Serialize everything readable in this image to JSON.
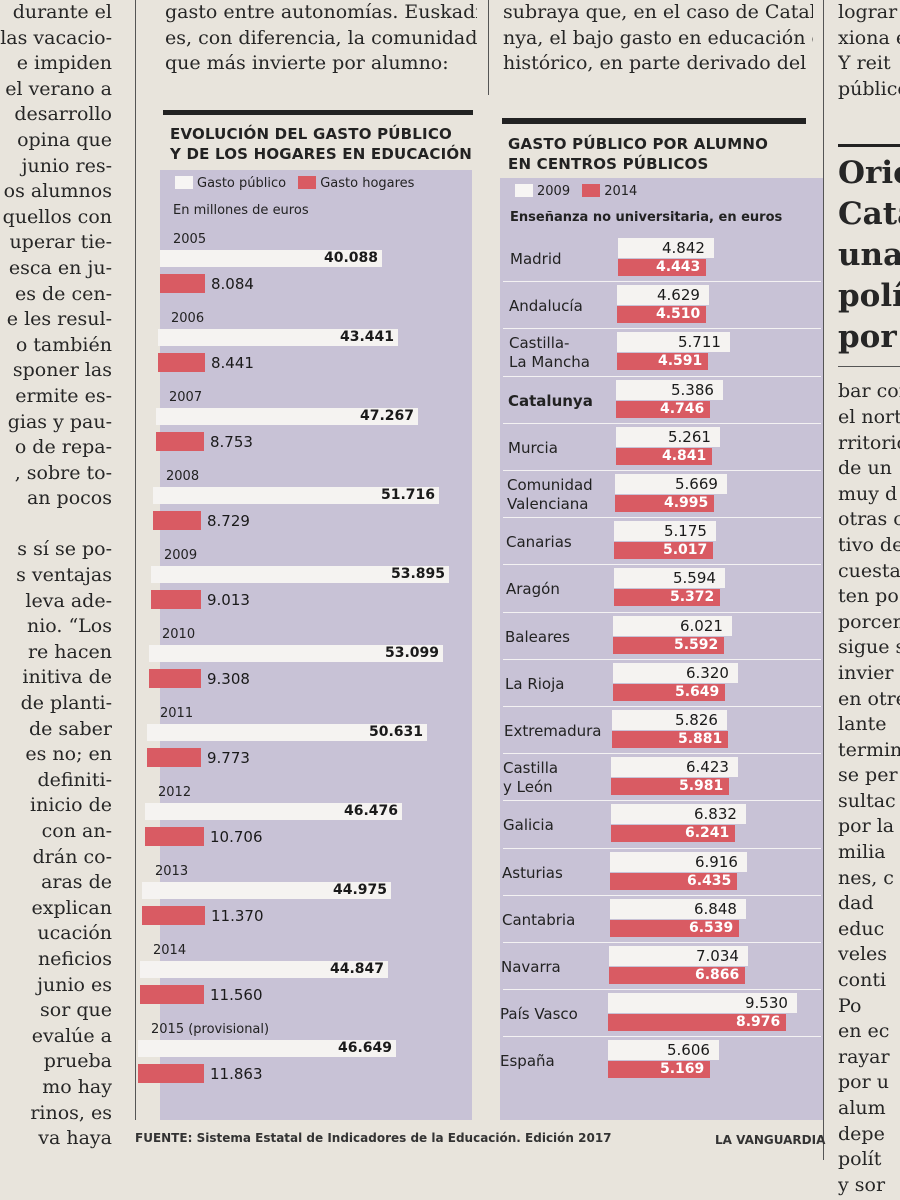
{
  "article": {
    "left_col_lines": [
      "durante el",
      "las vacacio-",
      "e impiden",
      "el verano a",
      "desarrollo",
      "opina que",
      "junio res-",
      "os alumnos",
      "quellos con",
      "uperar tie-",
      "esca en ju-",
      "es de cen-",
      "e les resul-",
      "o también",
      "sponer las",
      "ermite es-",
      "gias y pau-",
      "o de repa-",
      ", sobre to-",
      "an pocos",
      "",
      "s sí se po-",
      "s ventajas",
      "leva ade-",
      "nio. “Los",
      "re hacen",
      "initiva de",
      "de planti-",
      "de saber",
      "es no; en",
      "definiti-",
      "inicio de",
      "con an-",
      "drán co-",
      "aras de",
      "explican",
      "ucación",
      "neficios",
      "junio es",
      "sor que",
      "evalúe a",
      "prueba",
      "mo hay",
      "rinos, es",
      "va haya"
    ],
    "top_mid_lines": [
      "gasto entre autonomías. Euskadi",
      "es, con diferencia, la comunidad",
      "que más invierte por alumno:"
    ],
    "top_right_lines": [
      "subraya que, en el caso de Catalu-",
      "nya, el bajo gasto en educación es",
      "histórico, en parte derivado del"
    ],
    "right_col_lines": [
      "lograr r",
      "xiona e",
      "Y reit",
      "público"
    ],
    "right_headline_lines": [
      "Oriol",
      "Catal",
      "una e",
      "polít",
      "por l"
    ],
    "right_body_lines": [
      "bar con",
      "el norte",
      "rritorio",
      "de un",
      "muy d",
      "otras c",
      "tivo de",
      "cuesta",
      "ten po",
      "porcen",
      "sigue s",
      "invier",
      "en otre",
      "lante",
      "termin",
      "se per",
      "sultac",
      "por la",
      "milia",
      "nes, c",
      "dad",
      "educ",
      "veles",
      "conti",
      "Po",
      "en ec",
      "rayar",
      "por u",
      "alum",
      "depe",
      "polít",
      "y sor"
    ]
  },
  "chart_left": {
    "title_lines": [
      "EVOLUCIÓN DEL GASTO PÚBLICO",
      "Y DE LOS HOGARES EN EDUCACIÓN"
    ],
    "legend": {
      "public": "Gasto público",
      "households": "Gasto hogares"
    },
    "subtitle": "En millones de euros",
    "colors": {
      "public": "#f5f3f1",
      "households": "#d95b63",
      "panel": "#c8c2d6"
    }
  },
  "chart_right": {
    "title_lines": [
      "GASTO PÚBLICO POR ALUMNO",
      "EN CENTROS PÚBLICOS"
    ],
    "legend": {
      "y2009": "2009",
      "y2014": "2014"
    },
    "subtitle": "Enseñanza no universitaria, en euros"
  },
  "footer": {
    "source_label": "FUENTE:",
    "source_text": "Sistema Estatal de Indicadores de la Educación. Edición 2017",
    "brand": "LA VANGUARDIA"
  },
  "chart_data": [
    {
      "type": "bar",
      "title": "EVOLUCIÓN DEL GASTO PÚBLICO Y DE LOS HOGARES EN EDUCACIÓN",
      "subtitle": "En millones de euros",
      "categories": [
        "2005",
        "2006",
        "2007",
        "2008",
        "2009",
        "2010",
        "2011",
        "2012",
        "2013",
        "2014",
        "2015 (provisional)"
      ],
      "series": [
        {
          "name": "Gasto público",
          "values": [
            40088,
            43441,
            47267,
            51716,
            53895,
            53099,
            50631,
            46476,
            44975,
            44847,
            46649
          ],
          "labels": [
            "40.088",
            "43.441",
            "47.267",
            "51.716",
            "53.895",
            "53.099",
            "50.631",
            "46.476",
            "44.975",
            "44.847",
            "46.649"
          ]
        },
        {
          "name": "Gasto hogares",
          "values": [
            8084,
            8441,
            8753,
            8729,
            9013,
            9308,
            9773,
            10706,
            11370,
            11560,
            11863
          ],
          "labels": [
            "8.084",
            "8.441",
            "8.753",
            "8.729",
            "9.013",
            "9.308",
            "9.773",
            "10.706",
            "11.370",
            "11.560",
            "11.863"
          ]
        }
      ]
    },
    {
      "type": "bar",
      "title": "GASTO PÚBLICO POR ALUMNO EN CENTROS PÚBLICOS",
      "subtitle": "Enseñanza no universitaria, en euros",
      "categories": [
        "Madrid",
        "Andalucía",
        "Castilla-\nLa Mancha",
        "Catalunya",
        "Murcia",
        "Comunidad\nValenciana",
        "Canarias",
        "Aragón",
        "Baleares",
        "La Rioja",
        "Extremadura",
        "Castilla\ny León",
        "Galicia",
        "Asturias",
        "Cantabria",
        "Navarra",
        "País Vasco",
        "España"
      ],
      "series": [
        {
          "name": "2009",
          "values": [
            4842,
            4629,
            5711,
            5386,
            5261,
            5669,
            5175,
            5594,
            6021,
            6320,
            5826,
            6423,
            6832,
            6916,
            6848,
            7034,
            9530,
            5606
          ],
          "labels": [
            "4.842",
            "4.629",
            "5.711",
            "5.386",
            "5.261",
            "5.669",
            "5.175",
            "5.594",
            "6.021",
            "6.320",
            "5.826",
            "6.423",
            "6.832",
            "6.916",
            "6.848",
            "7.034",
            "9.530",
            "5.606"
          ]
        },
        {
          "name": "2014",
          "values": [
            4443,
            4510,
            4591,
            4746,
            4841,
            4995,
            5017,
            5372,
            5592,
            5649,
            5881,
            5981,
            6241,
            6435,
            6539,
            6866,
            8976,
            5169
          ],
          "labels": [
            "4.443",
            "4.510",
            "4.591",
            "4.746",
            "4.841",
            "4.995",
            "5.017",
            "5.372",
            "5.592",
            "5.649",
            "5.881",
            "5.981",
            "6.241",
            "6.435",
            "6.539",
            "6.866",
            "8.976",
            "5.169"
          ]
        }
      ]
    }
  ]
}
